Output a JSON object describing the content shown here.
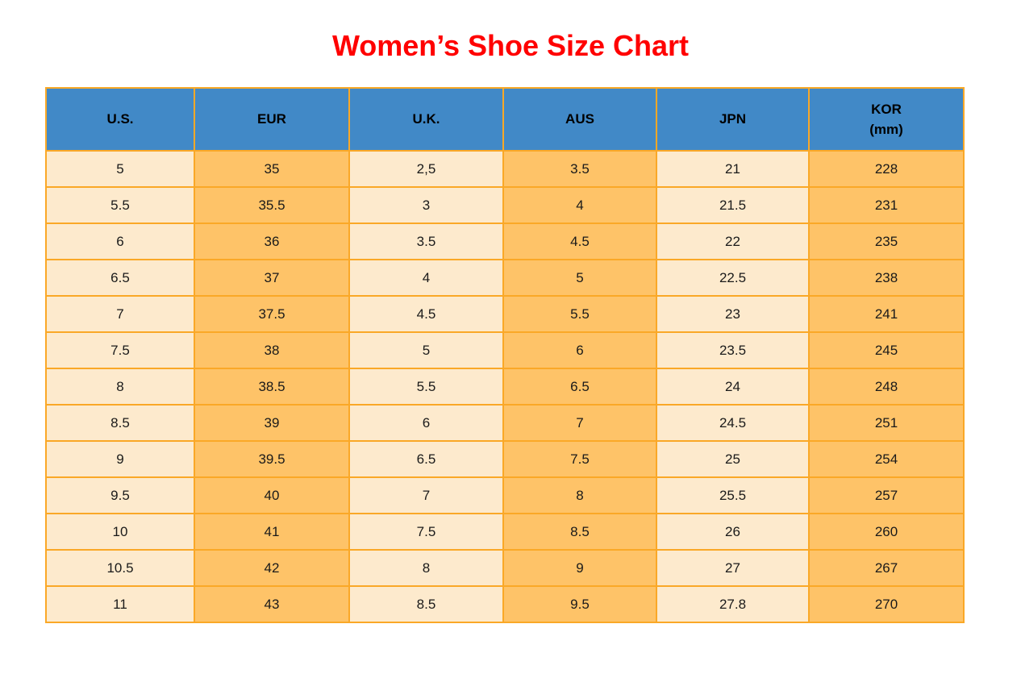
{
  "title": "Women’s Shoe Size Chart",
  "colors": {
    "title_red": "#ff0000",
    "header_blue": "#4189c7",
    "column_cream": "#fdeacd",
    "column_orange": "#fec368",
    "grid_border_orange": "#faa827"
  },
  "table": {
    "headers": [
      {
        "label": "U.S.",
        "sublabel": ""
      },
      {
        "label": "EUR",
        "sublabel": ""
      },
      {
        "label": "U.K.",
        "sublabel": ""
      },
      {
        "label": "AUS",
        "sublabel": ""
      },
      {
        "label": "JPN",
        "sublabel": ""
      },
      {
        "label": "KOR",
        "sublabel": "(mm)"
      }
    ]
  },
  "chart_data": {
    "type": "table",
    "title": "Women’s Shoe Size Chart",
    "columns": [
      "U.S.",
      "EUR",
      "U.K.",
      "AUS",
      "JPN",
      "KOR (mm)"
    ],
    "rows": [
      [
        "5",
        "35",
        "2,5",
        "3.5",
        "21",
        "228"
      ],
      [
        "5.5",
        "35.5",
        "3",
        "4",
        "21.5",
        "231"
      ],
      [
        "6",
        "36",
        "3.5",
        "4.5",
        "22",
        "235"
      ],
      [
        "6.5",
        "37",
        "4",
        "5",
        "22.5",
        "238"
      ],
      [
        "7",
        "37.5",
        "4.5",
        "5.5",
        "23",
        "241"
      ],
      [
        "7.5",
        "38",
        "5",
        "6",
        "23.5",
        "245"
      ],
      [
        "8",
        "38.5",
        "5.5",
        "6.5",
        "24",
        "248"
      ],
      [
        "8.5",
        "39",
        "6",
        "7",
        "24.5",
        "251"
      ],
      [
        "9",
        "39.5",
        "6.5",
        "7.5",
        "25",
        "254"
      ],
      [
        "9.5",
        "40",
        "7",
        "8",
        "25.5",
        "257"
      ],
      [
        "10",
        "41",
        "7.5",
        "8.5",
        "26",
        "260"
      ],
      [
        "10.5",
        "42",
        "8",
        "9",
        "27",
        "267"
      ],
      [
        "11",
        "43",
        "8.5",
        "9.5",
        "27.8",
        "270"
      ]
    ]
  }
}
